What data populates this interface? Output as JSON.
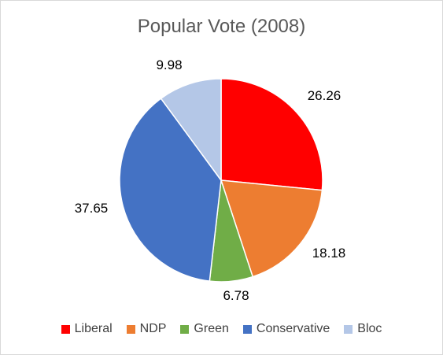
{
  "chart_data": {
    "type": "pie",
    "title": "Popular Vote (2008)",
    "slices": [
      {
        "label": "Liberal",
        "value": 26.26,
        "color": "#ff0000"
      },
      {
        "label": "NDP",
        "value": 18.18,
        "color": "#ed7d31"
      },
      {
        "label": "Green",
        "value": 6.78,
        "color": "#70ad47"
      },
      {
        "label": "Conservative",
        "value": 37.65,
        "color": "#4472c4"
      },
      {
        "label": "Bloc",
        "value": 9.98,
        "color": "#b4c7e7"
      }
    ],
    "data_labels": [
      "26.26",
      "18.18",
      "6.78",
      "37.65",
      "9.98"
    ],
    "legend_position": "bottom"
  }
}
